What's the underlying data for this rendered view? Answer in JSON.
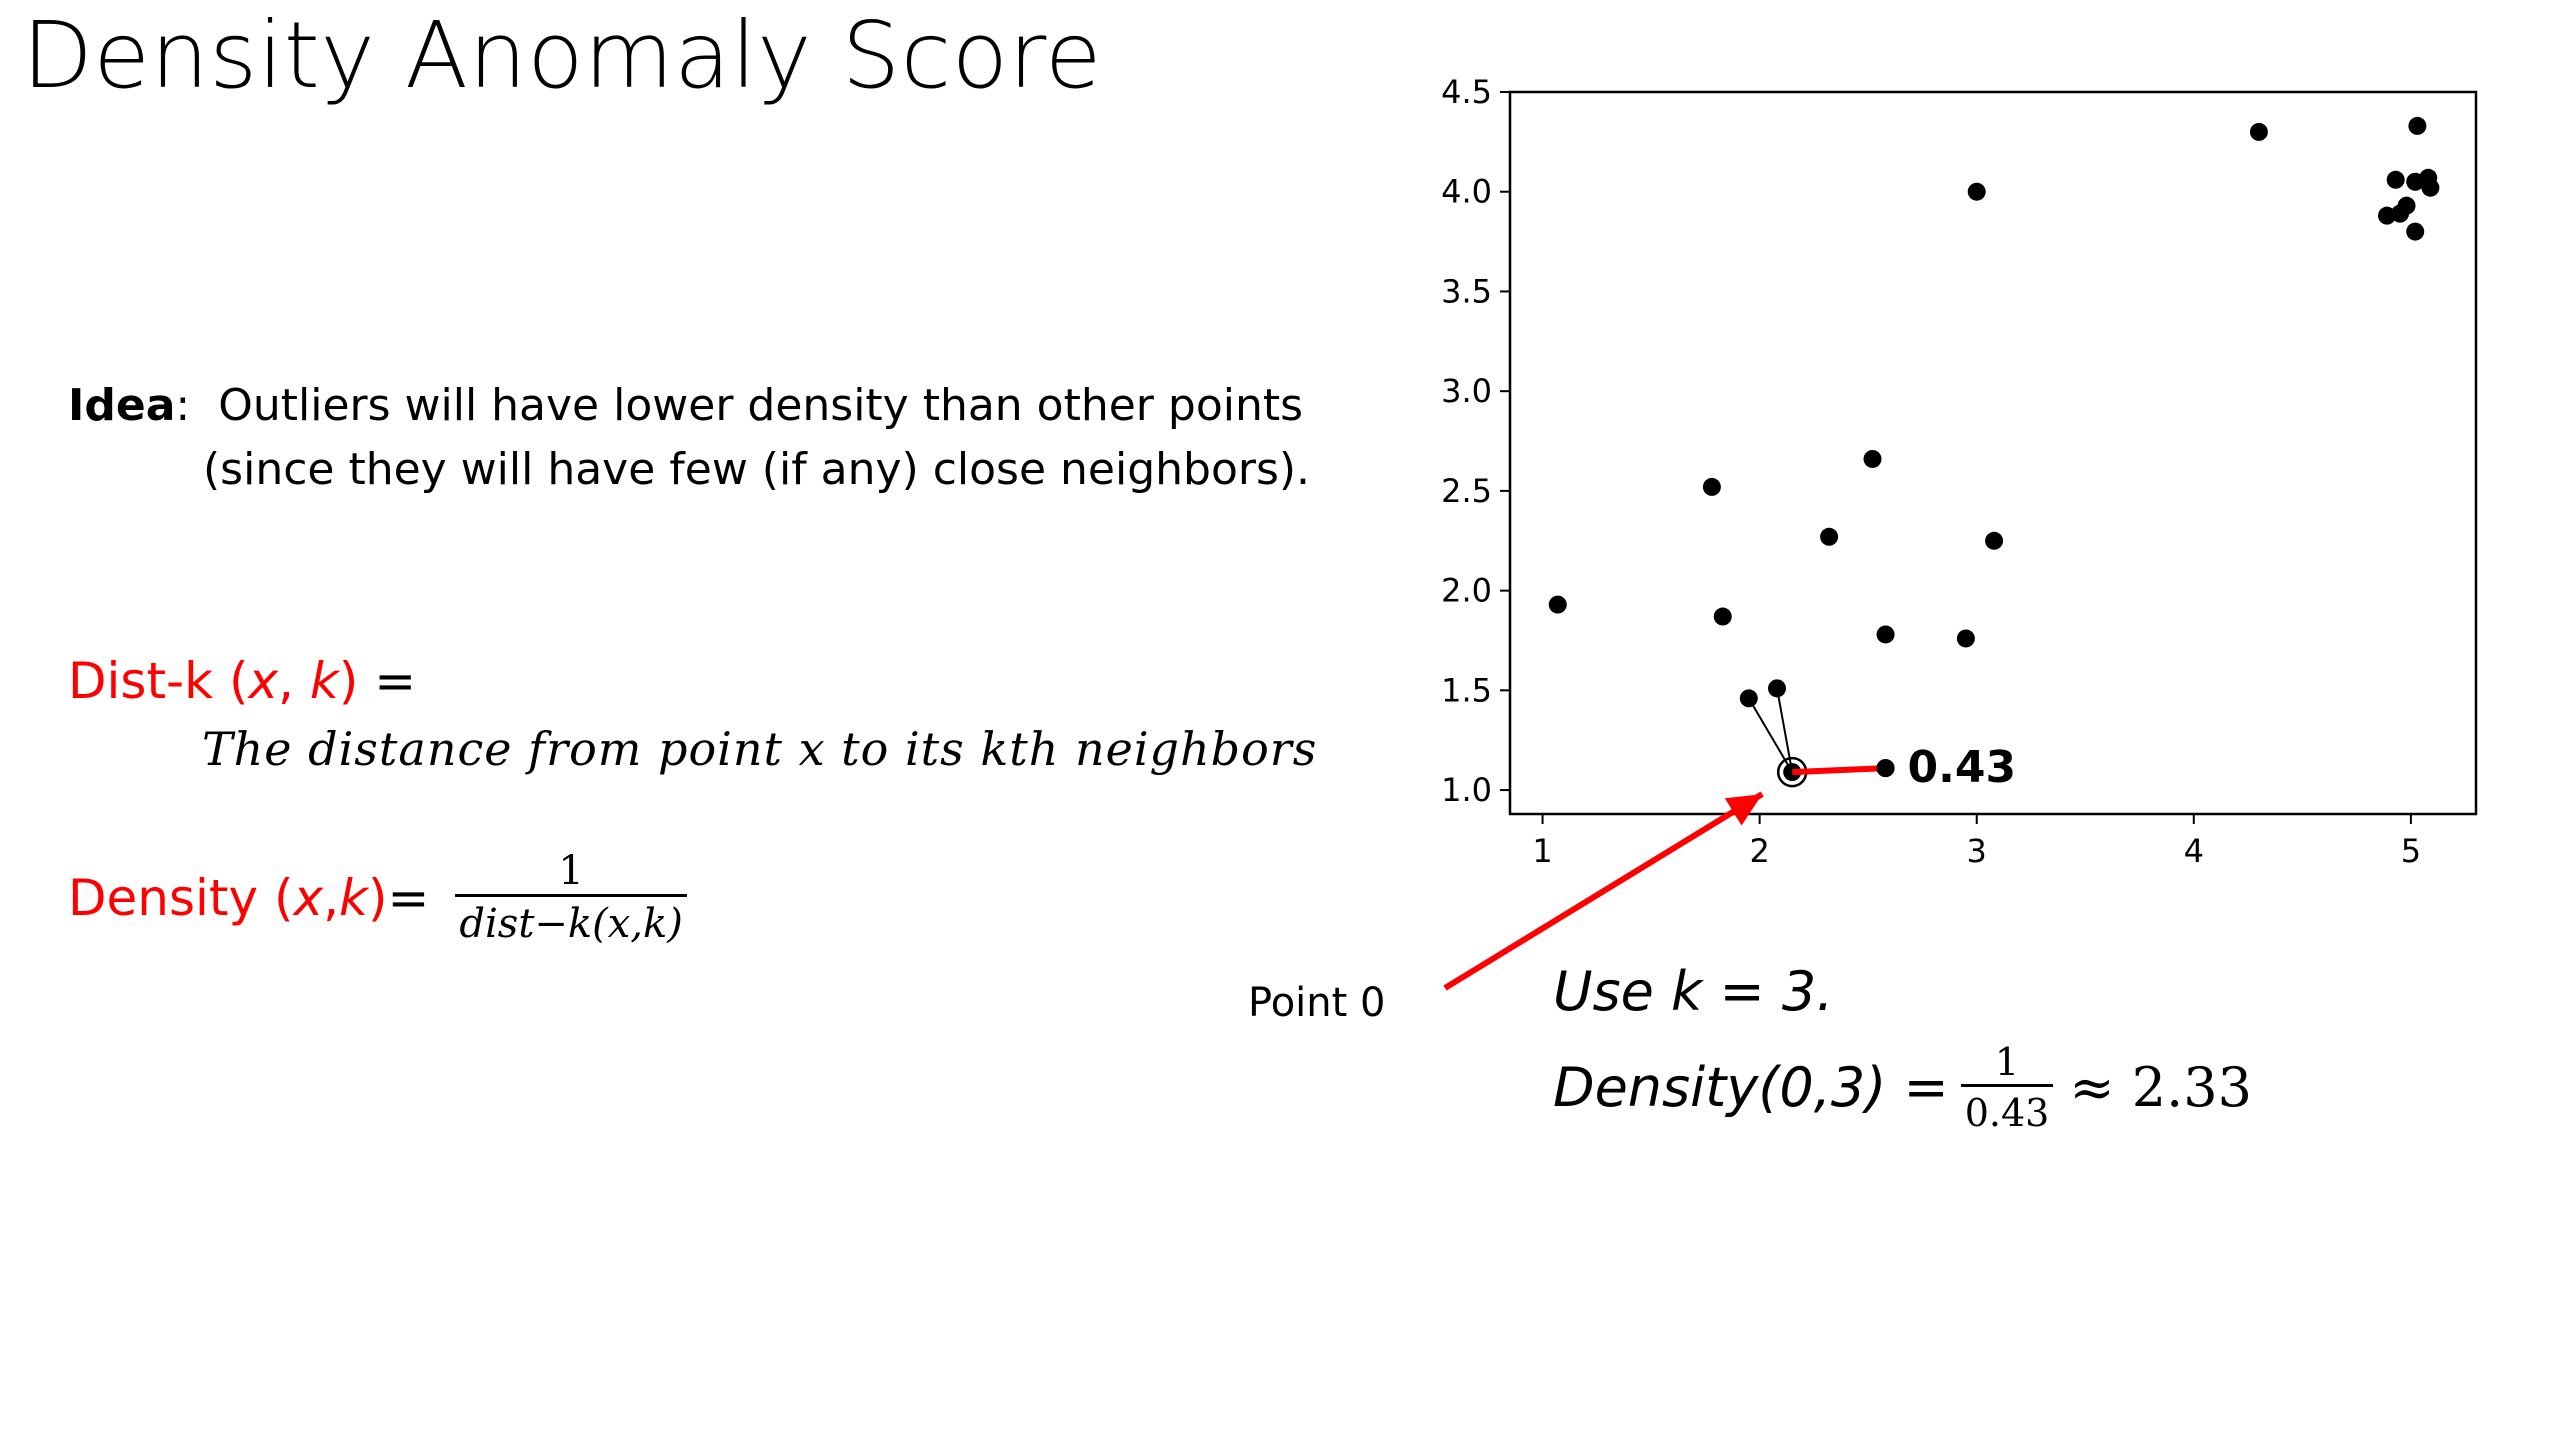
{
  "slide": {
    "title": "Density Anomaly Score",
    "idea_label": "Idea",
    "idea_colon": ":",
    "idea_line1": "Outliers will have lower density than other points",
    "idea_line2": "(since they will have few (if any) close neighbors).",
    "distk_lhs_a": "Dist-k (",
    "distk_lhs_x": "x",
    "distk_lhs_comma": ", ",
    "distk_lhs_k": "k",
    "distk_lhs_b": ")",
    "distk_eq": " =",
    "distk_def": "The distance from point x to its kth neighbors",
    "density_lhs_a": "Density (",
    "density_lhs_x": "x",
    "density_lhs_comma": ", ",
    "density_lhs_k": "k",
    "density_lhs_b": ")",
    "density_eq": " =",
    "density_num": "1",
    "density_den": "dist−k(x,k)",
    "point_label": "Point 0",
    "use_k": "Use k = 3.",
    "example_lhs": "Density(0,3) =",
    "example_num": "1",
    "example_den": "0.43",
    "example_approx": "≈ 2.33",
    "colors": {
      "accent": "#ff0000",
      "points": "#000000"
    }
  },
  "chart_data": {
    "type": "scatter",
    "title": "",
    "xlabel": "",
    "ylabel": "",
    "xlim": [
      0.85,
      5.3
    ],
    "ylim": [
      0.88,
      4.5
    ],
    "x_ticks": [
      1,
      2,
      3,
      4,
      5
    ],
    "y_ticks": [
      1.0,
      1.5,
      2.0,
      2.5,
      3.0,
      3.5,
      4.0,
      4.5
    ],
    "x_tick_labels": [
      "1",
      "2",
      "3",
      "4",
      "5"
    ],
    "y_tick_labels": [
      "1.0",
      "1.5",
      "2.0",
      "2.5",
      "3.0",
      "3.5",
      "4.0",
      "4.5"
    ],
    "grid": false,
    "points": [
      {
        "x": 2.15,
        "y": 1.09
      },
      {
        "x": 1.07,
        "y": 1.93
      },
      {
        "x": 1.78,
        "y": 2.52
      },
      {
        "x": 1.83,
        "y": 1.87
      },
      {
        "x": 1.95,
        "y": 1.46
      },
      {
        "x": 2.08,
        "y": 1.51
      },
      {
        "x": 2.32,
        "y": 2.27
      },
      {
        "x": 2.52,
        "y": 2.66
      },
      {
        "x": 2.58,
        "y": 1.78
      },
      {
        "x": 2.58,
        "y": 1.11
      },
      {
        "x": 2.95,
        "y": 1.76
      },
      {
        "x": 3.0,
        "y": 4.0
      },
      {
        "x": 3.08,
        "y": 2.25
      },
      {
        "x": 4.3,
        "y": 4.3
      },
      {
        "x": 5.03,
        "y": 4.33
      },
      {
        "x": 4.93,
        "y": 4.06
      },
      {
        "x": 5.02,
        "y": 4.05
      },
      {
        "x": 5.08,
        "y": 4.07
      },
      {
        "x": 5.09,
        "y": 4.02
      },
      {
        "x": 4.98,
        "y": 3.93
      },
      {
        "x": 4.95,
        "y": 3.89
      },
      {
        "x": 4.89,
        "y": 3.88
      },
      {
        "x": 5.02,
        "y": 3.8
      }
    ],
    "highlight_point": {
      "x": 2.15,
      "y": 1.09
    },
    "neighbor_lines": [
      {
        "x": 1.95,
        "y": 1.46
      },
      {
        "x": 2.08,
        "y": 1.51
      }
    ],
    "kth_neighbor": {
      "x": 2.58,
      "y": 1.11
    },
    "kth_distance_label": "0.43"
  }
}
